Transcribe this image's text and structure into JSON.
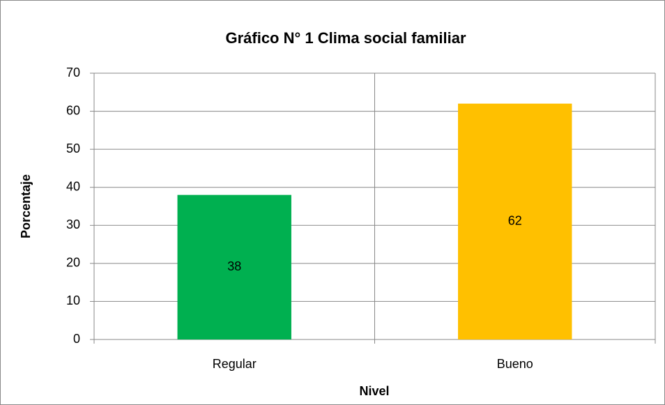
{
  "chart_data": {
    "type": "bar",
    "title": "Gráfico N° 1 Clima social familiar",
    "x_label": "Nivel",
    "y_label": "Porcentaje",
    "categories": [
      "Regular",
      "Bueno"
    ],
    "values": [
      38,
      62
    ],
    "colors": [
      "#00b050",
      "#ffc000"
    ],
    "ylim": [
      0,
      70
    ],
    "yticks": [
      0,
      10,
      20,
      30,
      40,
      50,
      60,
      70
    ],
    "grid": true
  }
}
